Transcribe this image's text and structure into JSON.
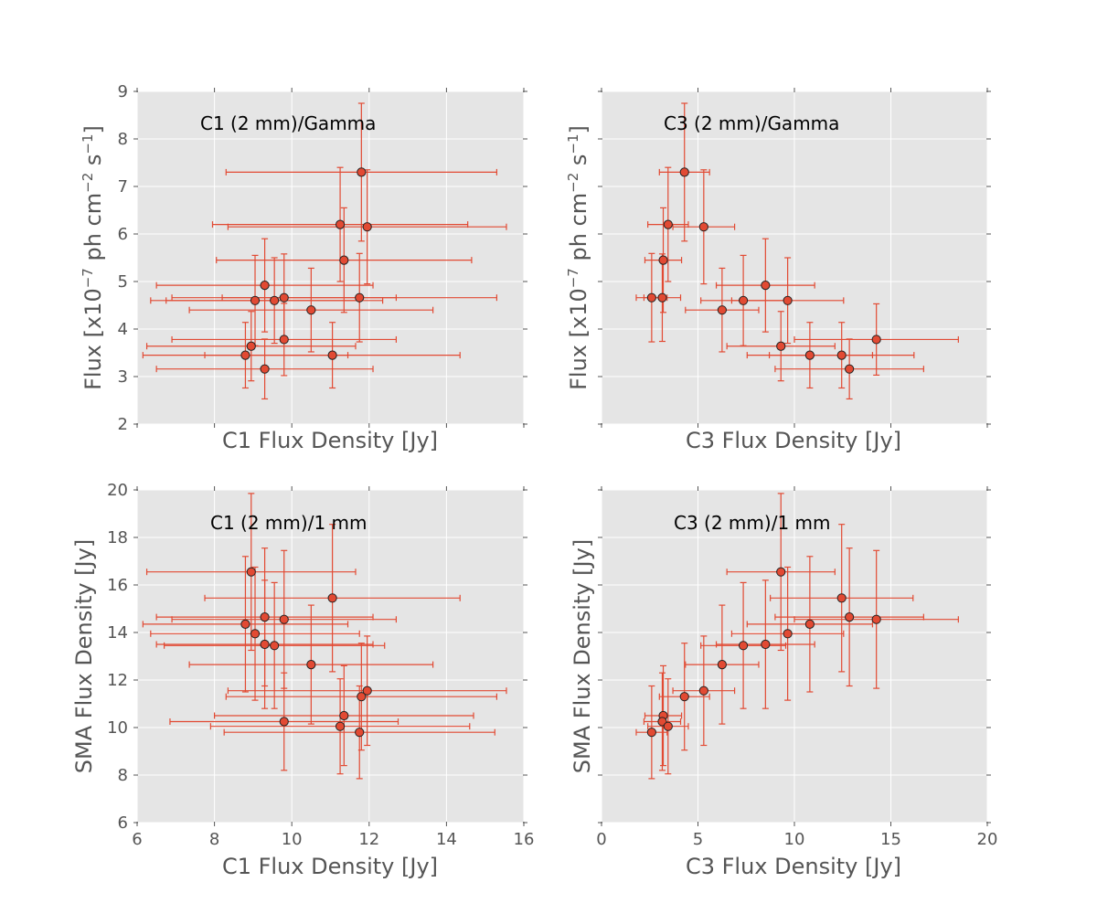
{
  "figure": {
    "background": "#ffffff",
    "panel_bg": "#e5e5e5",
    "grid_color": "#ffffff",
    "marker_fill": "#e24a33",
    "marker_edge": "#222222",
    "errorbar_color": "#e24a33"
  },
  "chart_data": [
    {
      "type": "scatter",
      "id": "c1-gamma",
      "title": "C1 (2 mm)/Gamma",
      "xlabel": "C1 Flux Density [Jy]",
      "ylabel_main": "Flux [x10",
      "ylabel_exp1": "−7",
      "ylabel_mid": " ph cm",
      "ylabel_exp2": "−2",
      "ylabel_mid2": " s",
      "ylabel_exp3": "−1",
      "ylabel_end": "]",
      "xlim": [
        6,
        16
      ],
      "ylim": [
        2,
        9
      ],
      "xticks": [
        6,
        8,
        10,
        12,
        14,
        16
      ],
      "yticks": [
        2,
        3,
        4,
        5,
        6,
        7,
        8,
        9
      ],
      "xtick_labels": [],
      "ytick_labels": [
        "2",
        "3",
        "4",
        "5",
        "6",
        "7",
        "8",
        "9"
      ],
      "points": [
        {
          "x": 11.8,
          "y": 7.3,
          "xerr": 3.5,
          "yerr": 1.45
        },
        {
          "x": 11.25,
          "y": 6.2,
          "xerr": 3.3,
          "yerr": 1.2
        },
        {
          "x": 11.95,
          "y": 6.15,
          "xerr": 3.6,
          "yerr": 1.2
        },
        {
          "x": 11.35,
          "y": 5.45,
          "xerr": 3.3,
          "yerr": 1.1
        },
        {
          "x": 9.3,
          "y": 4.92,
          "xerr": 2.8,
          "yerr": 0.98
        },
        {
          "x": 9.05,
          "y": 4.6,
          "xerr": 2.7,
          "yerr": 0.95
        },
        {
          "x": 9.55,
          "y": 4.6,
          "xerr": 2.8,
          "yerr": 0.9
        },
        {
          "x": 9.8,
          "y": 4.66,
          "xerr": 2.9,
          "yerr": 0.92
        },
        {
          "x": 11.75,
          "y": 4.66,
          "xerr": 3.55,
          "yerr": 0.93
        },
        {
          "x": 10.5,
          "y": 4.4,
          "xerr": 3.15,
          "yerr": 0.88
        },
        {
          "x": 9.8,
          "y": 3.78,
          "xerr": 2.9,
          "yerr": 0.76
        },
        {
          "x": 8.95,
          "y": 3.64,
          "xerr": 2.7,
          "yerr": 0.73
        },
        {
          "x": 8.8,
          "y": 3.45,
          "xerr": 2.65,
          "yerr": 0.69
        },
        {
          "x": 11.05,
          "y": 3.45,
          "xerr": 3.3,
          "yerr": 0.69
        },
        {
          "x": 9.3,
          "y": 3.16,
          "xerr": 2.8,
          "yerr": 0.63
        }
      ]
    },
    {
      "type": "scatter",
      "id": "c3-gamma",
      "title": "C3 (2 mm)/Gamma",
      "xlabel": "C3 Flux Density [Jy]",
      "ylabel_main": "Flux [x10",
      "ylabel_exp1": "−7",
      "ylabel_mid": " ph cm",
      "ylabel_exp2": "−2",
      "ylabel_mid2": " s",
      "ylabel_exp3": "−1",
      "ylabel_end": "]",
      "xlim": [
        0,
        20
      ],
      "ylim": [
        2,
        9
      ],
      "xticks": [
        0,
        5,
        10,
        15,
        20
      ],
      "yticks": [
        2,
        3,
        4,
        5,
        6,
        7,
        8,
        9
      ],
      "xtick_labels": [],
      "ytick_labels": [],
      "points": [
        {
          "x": 4.3,
          "y": 7.3,
          "xerr": 1.3,
          "yerr": 1.45
        },
        {
          "x": 3.45,
          "y": 6.2,
          "xerr": 1.05,
          "yerr": 1.2
        },
        {
          "x": 5.3,
          "y": 6.15,
          "xerr": 1.6,
          "yerr": 1.2
        },
        {
          "x": 3.2,
          "y": 5.45,
          "xerr": 0.95,
          "yerr": 1.1
        },
        {
          "x": 8.5,
          "y": 4.92,
          "xerr": 2.55,
          "yerr": 0.98
        },
        {
          "x": 7.35,
          "y": 4.6,
          "xerr": 2.2,
          "yerr": 0.95
        },
        {
          "x": 9.65,
          "y": 4.6,
          "xerr": 2.9,
          "yerr": 0.9
        },
        {
          "x": 2.6,
          "y": 4.66,
          "xerr": 0.8,
          "yerr": 0.93
        },
        {
          "x": 3.15,
          "y": 4.66,
          "xerr": 0.95,
          "yerr": 0.92
        },
        {
          "x": 6.25,
          "y": 4.4,
          "xerr": 1.9,
          "yerr": 0.88
        },
        {
          "x": 14.25,
          "y": 3.78,
          "xerr": 4.25,
          "yerr": 0.75
        },
        {
          "x": 9.3,
          "y": 3.64,
          "xerr": 2.8,
          "yerr": 0.73
        },
        {
          "x": 10.8,
          "y": 3.45,
          "xerr": 3.25,
          "yerr": 0.69
        },
        {
          "x": 12.45,
          "y": 3.45,
          "xerr": 3.75,
          "yerr": 0.69
        },
        {
          "x": 12.85,
          "y": 3.16,
          "xerr": 3.85,
          "yerr": 0.63
        }
      ]
    },
    {
      "type": "scatter",
      "id": "c1-1mm",
      "title": "C1 (2 mm)/1 mm",
      "xlabel": "C1 Flux Density [Jy]",
      "ylabel_main": "SMA Flux Density [Jy]",
      "xlim": [
        6,
        16
      ],
      "ylim": [
        6,
        20
      ],
      "xticks": [
        6,
        8,
        10,
        12,
        14,
        16
      ],
      "yticks": [
        6,
        8,
        10,
        12,
        14,
        16,
        18,
        20
      ],
      "xtick_labels": [
        "6",
        "8",
        "10",
        "12",
        "14",
        "16"
      ],
      "ytick_labels": [
        "6",
        "8",
        "10",
        "12",
        "14",
        "16",
        "18",
        "20"
      ],
      "points": [
        {
          "x": 8.95,
          "y": 16.55,
          "xerr": 2.7,
          "yerr": 3.3
        },
        {
          "x": 11.05,
          "y": 15.45,
          "xerr": 3.3,
          "yerr": 3.1
        },
        {
          "x": 9.3,
          "y": 14.65,
          "xerr": 2.8,
          "yerr": 2.9
        },
        {
          "x": 9.8,
          "y": 14.55,
          "xerr": 2.9,
          "yerr": 2.9
        },
        {
          "x": 8.8,
          "y": 14.35,
          "xerr": 2.65,
          "yerr": 2.85
        },
        {
          "x": 9.05,
          "y": 13.95,
          "xerr": 2.7,
          "yerr": 2.8
        },
        {
          "x": 9.3,
          "y": 13.5,
          "xerr": 2.8,
          "yerr": 2.7
        },
        {
          "x": 9.55,
          "y": 13.45,
          "xerr": 2.85,
          "yerr": 2.65
        },
        {
          "x": 10.5,
          "y": 12.65,
          "xerr": 3.15,
          "yerr": 2.5
        },
        {
          "x": 11.95,
          "y": 11.55,
          "xerr": 3.6,
          "yerr": 2.3
        },
        {
          "x": 11.8,
          "y": 11.3,
          "xerr": 3.5,
          "yerr": 2.25
        },
        {
          "x": 11.35,
          "y": 10.5,
          "xerr": 3.35,
          "yerr": 2.1
        },
        {
          "x": 9.8,
          "y": 10.25,
          "xerr": 2.95,
          "yerr": 2.05
        },
        {
          "x": 11.25,
          "y": 10.05,
          "xerr": 3.35,
          "yerr": 2.0
        },
        {
          "x": 11.75,
          "y": 9.8,
          "xerr": 3.5,
          "yerr": 1.95
        }
      ]
    },
    {
      "type": "scatter",
      "id": "c3-1mm",
      "title": "C3 (2 mm)/1 mm",
      "xlabel": "C3 Flux Density [Jy]",
      "ylabel_main": "SMA Flux Density [Jy]",
      "xlim": [
        0,
        20
      ],
      "ylim": [
        6,
        20
      ],
      "xticks": [
        0,
        5,
        10,
        15,
        20
      ],
      "yticks": [
        6,
        8,
        10,
        12,
        14,
        16,
        18,
        20
      ],
      "xtick_labels": [
        "0",
        "5",
        "10",
        "15",
        "20"
      ],
      "ytick_labels": [],
      "points": [
        {
          "x": 9.3,
          "y": 16.55,
          "xerr": 2.8,
          "yerr": 3.3
        },
        {
          "x": 12.45,
          "y": 15.45,
          "xerr": 3.7,
          "yerr": 3.1
        },
        {
          "x": 12.85,
          "y": 14.65,
          "xerr": 3.85,
          "yerr": 2.9
        },
        {
          "x": 14.25,
          "y": 14.55,
          "xerr": 4.25,
          "yerr": 2.9
        },
        {
          "x": 10.8,
          "y": 14.35,
          "xerr": 3.25,
          "yerr": 2.85
        },
        {
          "x": 9.65,
          "y": 13.95,
          "xerr": 2.9,
          "yerr": 2.8
        },
        {
          "x": 8.5,
          "y": 13.5,
          "xerr": 2.55,
          "yerr": 2.7
        },
        {
          "x": 7.35,
          "y": 13.45,
          "xerr": 2.2,
          "yerr": 2.65
        },
        {
          "x": 6.25,
          "y": 12.65,
          "xerr": 1.9,
          "yerr": 2.5
        },
        {
          "x": 5.3,
          "y": 11.55,
          "xerr": 1.6,
          "yerr": 2.3
        },
        {
          "x": 4.3,
          "y": 11.3,
          "xerr": 1.3,
          "yerr": 2.25
        },
        {
          "x": 3.2,
          "y": 10.5,
          "xerr": 0.95,
          "yerr": 2.1
        },
        {
          "x": 3.15,
          "y": 10.25,
          "xerr": 0.95,
          "yerr": 2.05
        },
        {
          "x": 3.45,
          "y": 10.05,
          "xerr": 1.05,
          "yerr": 2.0
        },
        {
          "x": 2.6,
          "y": 9.8,
          "xerr": 0.8,
          "yerr": 1.95
        }
      ]
    }
  ]
}
